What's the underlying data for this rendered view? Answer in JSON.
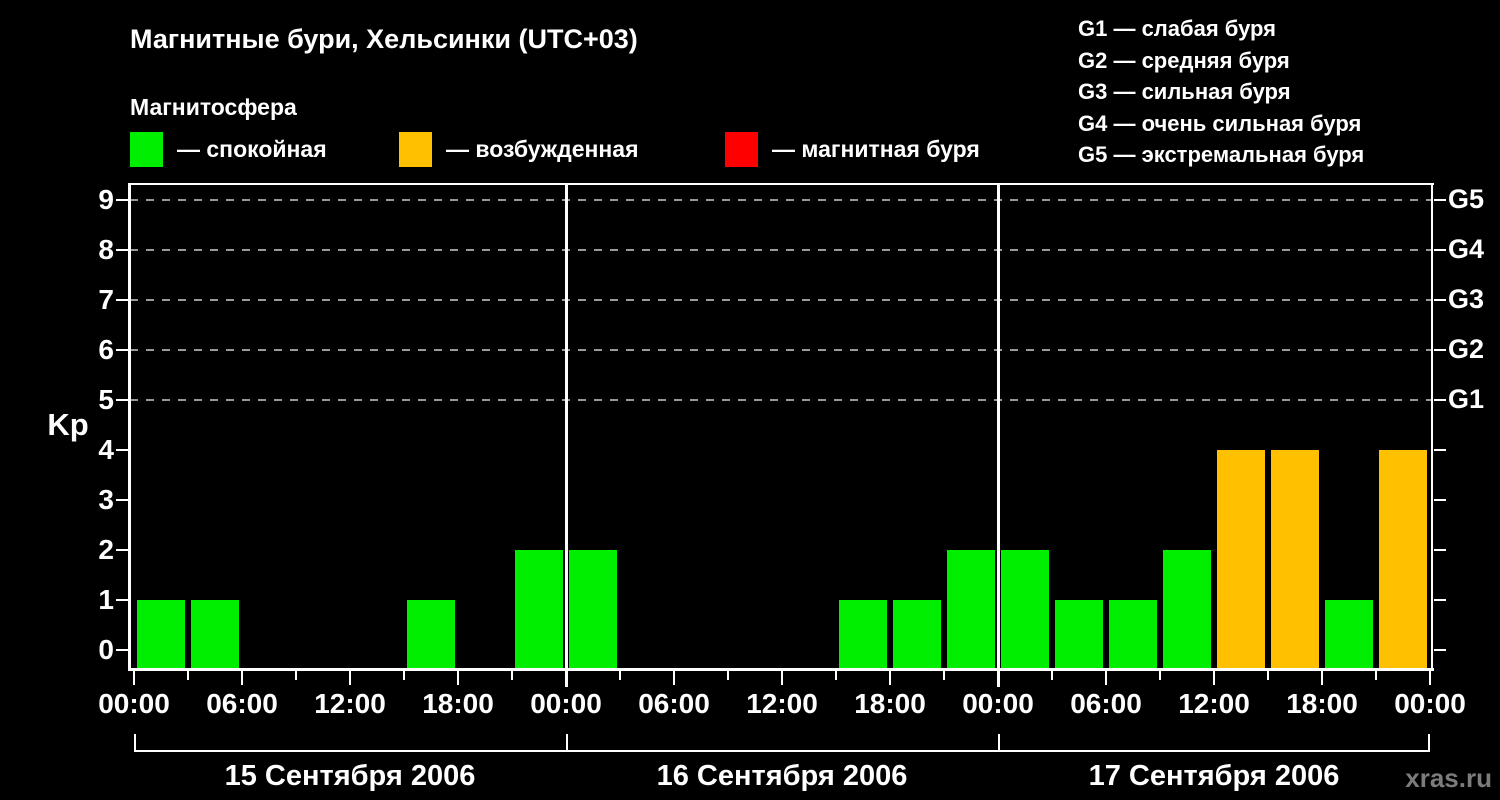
{
  "title": "Магнитные бури, Хельсинки (UTC+03)",
  "subtitle": "Магнитосфера",
  "legend": [
    {
      "label": "— спокойная",
      "state": "quiet",
      "color": "#00ee00"
    },
    {
      "label": "— возбужденная",
      "state": "excited",
      "color": "#ffc000"
    },
    {
      "label": "— магнитная буря",
      "state": "storm",
      "color": "#ff0000"
    }
  ],
  "g_scale_legend": [
    "G1 — слабая буря",
    "G2 — средняя буря",
    "G3 — сильная буря",
    "G4 — очень сильная буря",
    "G5 — экстремальная буря"
  ],
  "watermark": "xras.ru",
  "chart_data": {
    "type": "bar",
    "title": "Магнитные бури, Хельсинки (UTC+03)",
    "ylabel": "Kp",
    "ylim": [
      0,
      9.4
    ],
    "yticks": [
      0,
      1,
      2,
      3,
      4,
      5,
      6,
      7,
      8,
      9
    ],
    "grid_levels": [
      5,
      6,
      7,
      8,
      9
    ],
    "right_axis_labels": [
      {
        "level": 9,
        "label": "G5"
      },
      {
        "level": 8,
        "label": "G4"
      },
      {
        "level": 7,
        "label": "G3"
      },
      {
        "level": 6,
        "label": "G2"
      },
      {
        "level": 5,
        "label": "G1"
      }
    ],
    "x_label_cycle": [
      "00:00",
      "06:00",
      "12:00",
      "18:00"
    ],
    "hours_per_bar": 3,
    "color_rule": {
      "quiet_max_kp": 3,
      "excited_kp": 4,
      "storm_min_kp": 5
    },
    "colors": {
      "quiet": "#00ee00",
      "excited": "#ffc000",
      "storm": "#ff0000",
      "grid": "#999999",
      "axis": "#ffffff"
    },
    "days": [
      {
        "date": "15 Сентября 2006",
        "values": [
          1,
          1,
          0,
          0,
          0,
          1,
          0,
          2
        ]
      },
      {
        "date": "16 Сентября 2006",
        "values": [
          2,
          0,
          0,
          0,
          0,
          1,
          1,
          2
        ]
      },
      {
        "date": "17 Сентября 2006",
        "values": [
          2,
          1,
          1,
          2,
          4,
          4,
          1,
          4
        ]
      }
    ]
  }
}
